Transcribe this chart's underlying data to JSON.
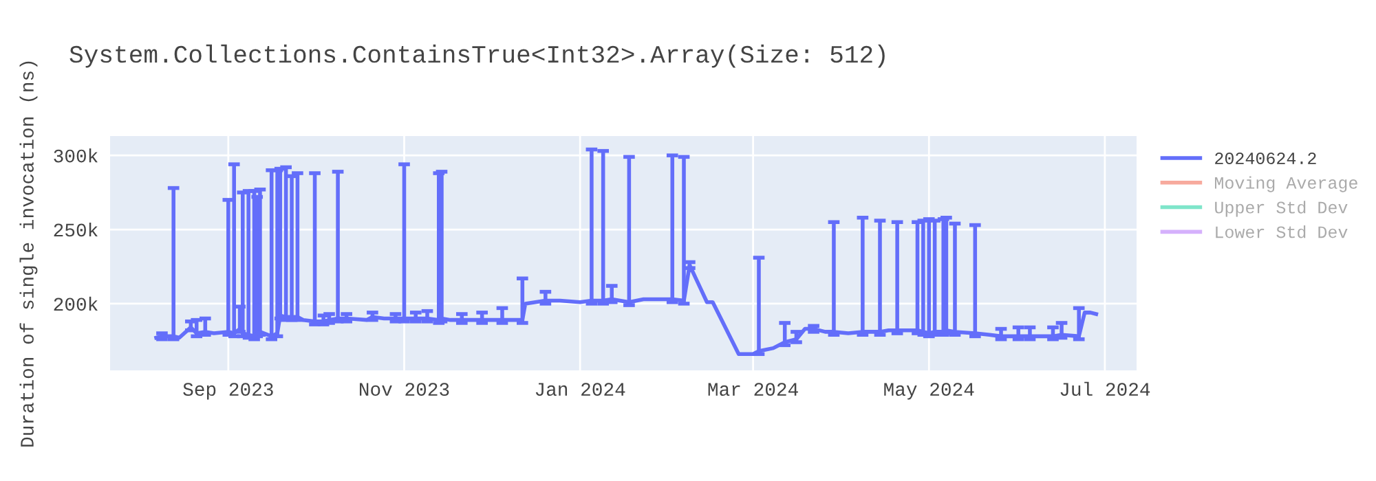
{
  "chart_data": {
    "type": "line",
    "title": "System.Collections.ContainsTrue<Int32>.Array(Size: 512)",
    "ylabel": "Duration of single invocation (ns)",
    "x": [
      "2023-08-07",
      "2023-08-09",
      "2023-08-13",
      "2023-08-15",
      "2023-08-19",
      "2023-08-21",
      "2023-08-24",
      "2023-08-27",
      "2023-09-01",
      "2023-09-03",
      "2023-09-05",
      "2023-09-06",
      "2023-09-08",
      "2023-09-10",
      "2023-09-11",
      "2023-09-12",
      "2023-09-16",
      "2023-09-18",
      "2023-09-19",
      "2023-09-21",
      "2023-09-23",
      "2023-09-25",
      "2023-09-27",
      "2023-10-01",
      "2023-10-04",
      "2023-10-06",
      "2023-10-09",
      "2023-10-12",
      "2023-10-19",
      "2023-10-21",
      "2023-10-25",
      "2023-10-29",
      "2023-11-01",
      "2023-11-05",
      "2023-11-09",
      "2023-11-13",
      "2023-11-14",
      "2023-11-17",
      "2023-11-21",
      "2023-11-28",
      "2023-12-05",
      "2023-12-12",
      "2023-12-13",
      "2023-12-20",
      "2023-12-25",
      "2024-01-01",
      "2024-01-05",
      "2024-01-09",
      "2024-01-12",
      "2024-01-18",
      "2024-01-23",
      "2024-02-02",
      "2024-02-06",
      "2024-02-08",
      "2024-02-14",
      "2024-02-16",
      "2024-02-25",
      "2024-03-01",
      "2024-03-03",
      "2024-03-08",
      "2024-03-12",
      "2024-03-16",
      "2024-03-19",
      "2024-03-22",
      "2024-03-26",
      "2024-03-29",
      "2024-04-03",
      "2024-04-08",
      "2024-04-14",
      "2024-04-17",
      "2024-04-20",
      "2024-04-27",
      "2024-04-29",
      "2024-05-01",
      "2024-05-03",
      "2024-05-06",
      "2024-05-07",
      "2024-05-10",
      "2024-05-17",
      "2024-05-22",
      "2024-05-26",
      "2024-06-01",
      "2024-06-05",
      "2024-06-13",
      "2024-06-16",
      "2024-06-22",
      "2024-06-24",
      "2024-06-26",
      "2024-06-28"
    ],
    "series": [
      {
        "name": "20240624.2",
        "color": "#636efa",
        "values": [
          177000,
          178000,
          178000,
          177000,
          184000,
          180000,
          181000,
          180000,
          181000,
          180000,
          183000,
          180000,
          179000,
          178000,
          180000,
          181000,
          178000,
          180000,
          192000,
          191000,
          191000,
          191000,
          189000,
          188000,
          188000,
          189000,
          190000,
          190000,
          189000,
          191000,
          190000,
          190000,
          190000,
          190000,
          190000,
          189000,
          190000,
          189000,
          189000,
          189000,
          189000,
          189000,
          200000,
          202000,
          202000,
          201000,
          202000,
          202000,
          203000,
          201000,
          203000,
          203000,
          202000,
          226000,
          201000,
          201000,
          166000,
          166000,
          168000,
          170000,
          174000,
          176000,
          183000,
          183000,
          181000,
          181000,
          180000,
          181000,
          181000,
          182000,
          182000,
          182000,
          181000,
          180000,
          181000,
          181000,
          182000,
          181000,
          180000,
          179000,
          178000,
          178000,
          178000,
          178000,
          179000,
          178000,
          194000,
          194000,
          193000
        ],
        "errors": [
          null,
          [
            176000,
            180000
          ],
          [
            176000,
            278000
          ],
          null,
          [
            182000,
            188000
          ],
          [
            178000,
            189000
          ],
          [
            179000,
            190000
          ],
          null,
          [
            179000,
            270000
          ],
          [
            178000,
            294000
          ],
          [
            181000,
            198000
          ],
          [
            178000,
            275000
          ],
          [
            177000,
            276000
          ],
          [
            176000,
            276000
          ],
          [
            178000,
            272000
          ],
          [
            179000,
            277000
          ],
          [
            176000,
            290000
          ],
          [
            178000,
            290000
          ],
          [
            190000,
            291000
          ],
          [
            189000,
            292000
          ],
          [
            189000,
            286000
          ],
          [
            189000,
            288000
          ],
          null,
          [
            186000,
            288000
          ],
          [
            186000,
            192000
          ],
          [
            187000,
            193000
          ],
          [
            188000,
            289000
          ],
          [
            188000,
            193000
          ],
          null,
          [
            189000,
            194000
          ],
          null,
          [
            188000,
            193000
          ],
          [
            188000,
            294000
          ],
          [
            188000,
            194000
          ],
          [
            188000,
            195000
          ],
          [
            187000,
            288000
          ],
          [
            188000,
            289000
          ],
          null,
          [
            187000,
            193000
          ],
          [
            187000,
            194000
          ],
          [
            187000,
            197000
          ],
          [
            187000,
            217000
          ],
          null,
          [
            200000,
            208000
          ],
          null,
          null,
          [
            200000,
            304000
          ],
          [
            200000,
            303000
          ],
          [
            201000,
            212000
          ],
          [
            199000,
            299000
          ],
          null,
          [
            201000,
            300000
          ],
          [
            200000,
            299000
          ],
          [
            224000,
            228000
          ],
          null,
          null,
          null,
          null,
          [
            166000,
            231000
          ],
          null,
          [
            172000,
            187000
          ],
          [
            174000,
            181000
          ],
          null,
          [
            181000,
            185000
          ],
          null,
          [
            179000,
            255000
          ],
          null,
          [
            179000,
            258000
          ],
          [
            179000,
            256000
          ],
          null,
          [
            180000,
            255000
          ],
          [
            180000,
            255000
          ],
          [
            179000,
            256000
          ],
          [
            178000,
            257000
          ],
          [
            179000,
            256000
          ],
          [
            179000,
            257000
          ],
          [
            180000,
            258000
          ],
          [
            179000,
            254000
          ],
          [
            178000,
            253000
          ],
          null,
          [
            176000,
            183000
          ],
          [
            176000,
            184000
          ],
          [
            176000,
            184000
          ],
          [
            176000,
            184000
          ],
          [
            177000,
            187000
          ],
          [
            176000,
            197000
          ],
          null,
          null,
          null
        ]
      },
      {
        "name": "Moving Average",
        "color": "#ef553b",
        "values": [
          null,
          null,
          null,
          null,
          null,
          null,
          null,
          null,
          null,
          null,
          null,
          null,
          null,
          null,
          null,
          null,
          null,
          null,
          null,
          null,
          null,
          null,
          null,
          null,
          null,
          null,
          null,
          null,
          null,
          null,
          null,
          null,
          null,
          null,
          null,
          null,
          null,
          null,
          null,
          null,
          null,
          null,
          null,
          null,
          null,
          null,
          null,
          null,
          null,
          null,
          null,
          null,
          null,
          null,
          null,
          null,
          null,
          null,
          null,
          null,
          null,
          null,
          null,
          null,
          null,
          null,
          null,
          null,
          null,
          null,
          null,
          null,
          null,
          null,
          null,
          null,
          null,
          null,
          null,
          null,
          null,
          null,
          null,
          null,
          null,
          null,
          null,
          null,
          null
        ]
      },
      {
        "name": "Upper Std Dev",
        "color": "#00cc96",
        "values": [
          null,
          null,
          null,
          null,
          null,
          null,
          null,
          null,
          null,
          null,
          null,
          null,
          null,
          null,
          null,
          null,
          null,
          null,
          null,
          null,
          null,
          null,
          null,
          null,
          null,
          null,
          null,
          null,
          null,
          null,
          null,
          null,
          null,
          null,
          null,
          null,
          null,
          null,
          null,
          null,
          null,
          null,
          null,
          null,
          null,
          null,
          null,
          null,
          null,
          null,
          null,
          null,
          null,
          null,
          null,
          null,
          null,
          null,
          null,
          null,
          null,
          null,
          null,
          null,
          null,
          null,
          null,
          null,
          null,
          null,
          null,
          null,
          null,
          null,
          null,
          null,
          null,
          null,
          null,
          null,
          null,
          null,
          null,
          null,
          null,
          null,
          null,
          null,
          null
        ]
      },
      {
        "name": "Lower Std Dev",
        "color": "#ab63fa",
        "values": [
          null,
          null,
          null,
          null,
          null,
          null,
          null,
          null,
          null,
          null,
          null,
          null,
          null,
          null,
          null,
          null,
          null,
          null,
          null,
          null,
          null,
          null,
          null,
          null,
          null,
          null,
          null,
          null,
          null,
          null,
          null,
          null,
          null,
          null,
          null,
          null,
          null,
          null,
          null,
          null,
          null,
          null,
          null,
          null,
          null,
          null,
          null,
          null,
          null,
          null,
          null,
          null,
          null,
          null,
          null,
          null,
          null,
          null,
          null,
          null,
          null,
          null,
          null,
          null,
          null,
          null,
          null,
          null,
          null,
          null,
          null,
          null,
          null,
          null,
          null,
          null,
          null,
          null,
          null,
          null,
          null,
          null,
          null,
          null,
          null,
          null,
          null,
          null,
          null
        ]
      }
    ],
    "xlim": [
      "2023-07-22",
      "2024-07-12"
    ],
    "ylim": [
      155000,
      313000
    ],
    "xticks": [
      {
        "value": "2023-09-01",
        "label": "Sep 2023"
      },
      {
        "value": "2023-11-01",
        "label": "Nov 2023"
      },
      {
        "value": "2024-01-01",
        "label": "Jan 2024"
      },
      {
        "value": "2024-03-01",
        "label": "Mar 2024"
      },
      {
        "value": "2024-05-01",
        "label": "May 2024"
      },
      {
        "value": "2024-07-01",
        "label": "Jul 2024"
      }
    ],
    "yticks": [
      {
        "value": 200000,
        "label": "200k"
      },
      {
        "value": 250000,
        "label": "250k"
      },
      {
        "value": 300000,
        "label": "300k"
      }
    ],
    "grid": true,
    "legend": "top right",
    "marker": "none",
    "line_style": "solid"
  }
}
